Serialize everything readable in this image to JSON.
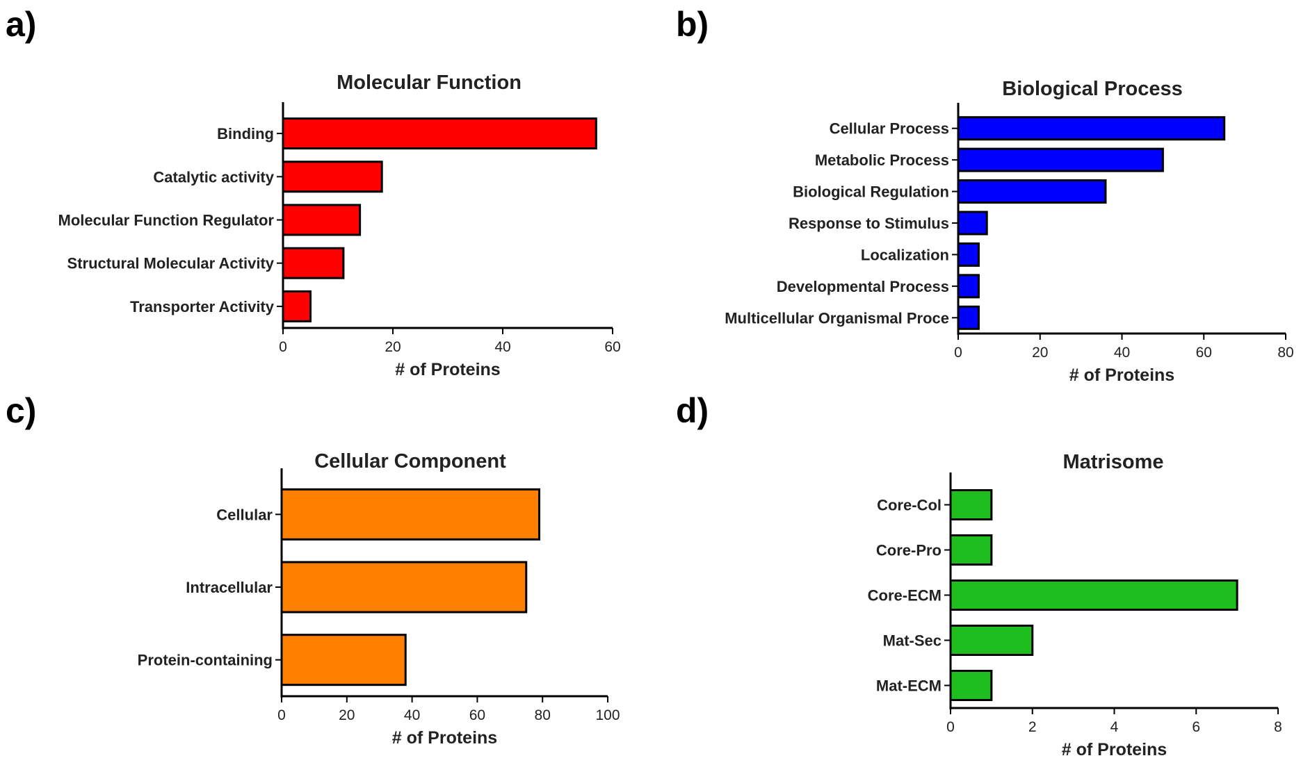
{
  "panels": [
    {
      "letter": "a)",
      "chart_data": {
        "type": "bar",
        "orientation": "horizontal",
        "title": "Molecular Function",
        "xlabel": "# of Proteins",
        "ylabel": "",
        "categories": [
          "Binding",
          "Catalytic activity",
          "Molecular Function Regulator",
          "Structural Molecular Activity",
          "Transporter Activity"
        ],
        "values": [
          57,
          18,
          14,
          11,
          5
        ],
        "xlim": [
          0,
          60
        ],
        "xticks": [
          0,
          20,
          40,
          60
        ],
        "color": "#ff0000"
      }
    },
    {
      "letter": "b)",
      "chart_data": {
        "type": "bar",
        "orientation": "horizontal",
        "title": "Biological Process",
        "xlabel": "# of Proteins",
        "ylabel": "",
        "categories": [
          "Cellular Process",
          "Metabolic Process",
          "Biological Regulation",
          "Response to Stimulus",
          "Localization",
          "Developmental Process",
          "Multicellular Organismal Proce"
        ],
        "values": [
          65,
          50,
          36,
          7,
          5,
          5,
          5
        ],
        "xlim": [
          0,
          80
        ],
        "xticks": [
          0,
          20,
          40,
          60,
          80
        ],
        "color": "#0000ff"
      }
    },
    {
      "letter": "c)",
      "chart_data": {
        "type": "bar",
        "orientation": "horizontal",
        "title": "Cellular Component",
        "xlabel": "# of Proteins",
        "ylabel": "",
        "categories": [
          "Cellular",
          "Intracellular",
          "Protein-containing"
        ],
        "values": [
          79,
          75,
          38
        ],
        "xlim": [
          0,
          100
        ],
        "xticks": [
          0,
          20,
          40,
          60,
          80,
          100
        ],
        "color": "#ff8000"
      }
    },
    {
      "letter": "d)",
      "chart_data": {
        "type": "bar",
        "orientation": "horizontal",
        "title": "Matrisome",
        "xlabel": "# of Proteins",
        "ylabel": "",
        "categories": [
          "Core-Col",
          "Core-Pro",
          "Core-ECM",
          "Mat-Sec",
          "Mat-ECM"
        ],
        "values": [
          1,
          1,
          7,
          2,
          1
        ],
        "xlim": [
          0,
          8
        ],
        "xticks": [
          0,
          2,
          4,
          6,
          8
        ],
        "color": "#1ebe1e"
      }
    }
  ]
}
